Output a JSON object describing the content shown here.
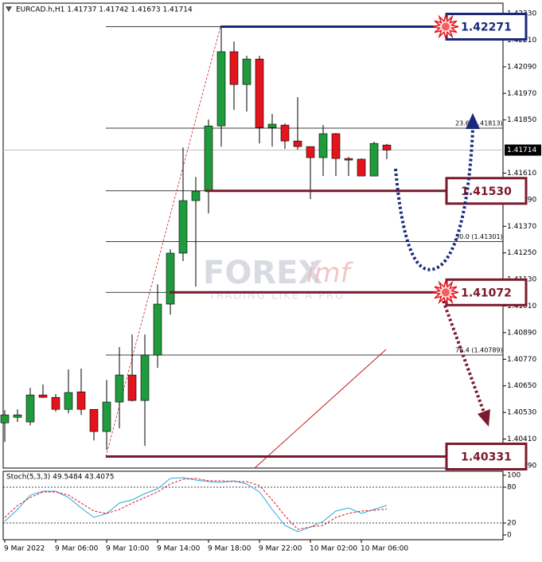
{
  "chart_data": {
    "type": "candlestick",
    "title": "EURCAD.h,H1  1.41737 1.41742 1.41673 1.41714",
    "watermark": [
      "FOREX",
      "imf"
    ],
    "watermark_tagline": "TRADING LIKE A PRO",
    "categories": [
      "9 Mar 2022",
      null,
      null,
      null,
      "9 Mar 06:00",
      null,
      null,
      null,
      "9 Mar 10:00",
      null,
      null,
      null,
      "9 Mar 14:00",
      null,
      null,
      null,
      "9 Mar 18:00",
      null,
      null,
      null,
      "9 Mar 22:00",
      null,
      null,
      null,
      "10 Mar 02:00",
      null,
      null,
      null,
      "10 Mar 06:00",
      null,
      null
    ],
    "open": [
      1.40483,
      1.40508,
      1.40487,
      1.40609,
      1.40598,
      1.40544,
      1.40623,
      1.40544,
      1.40444,
      1.40577,
      1.40699,
      1.40584,
      1.40789,
      1.41019,
      1.41249,
      1.41486,
      1.41529,
      1.41823,
      1.42158,
      1.4201,
      1.42125,
      1.41816,
      1.41827,
      1.41755,
      1.4173,
      1.4168,
      1.41788,
      1.41676,
      1.41673,
      1.41597,
      1.41737
    ],
    "high": [
      1.40541,
      1.40544,
      1.40641,
      1.40656,
      1.40613,
      1.40724,
      1.40728,
      1.40544,
      1.40677,
      1.40825,
      1.40882,
      1.40882,
      1.41108,
      1.41267,
      1.41726,
      1.41593,
      1.41852,
      1.42271,
      1.42204,
      1.4214,
      1.4214,
      1.41877,
      1.41834,
      1.41953,
      1.4173,
      1.41827,
      1.41791,
      1.41683,
      1.41676,
      1.41752,
      1.41742
    ],
    "low": [
      1.40397,
      1.40487,
      1.40472,
      1.40595,
      1.40534,
      1.40526,
      1.40519,
      1.40404,
      1.40361,
      1.40458,
      1.4058,
      1.40379,
      1.40731,
      1.40972,
      1.41213,
      1.41098,
      1.41428,
      1.4173,
      1.41895,
      1.41888,
      1.41744,
      1.4173,
      1.41719,
      1.41716,
      1.41493,
      1.41597,
      1.41597,
      1.41597,
      1.41597,
      1.41597,
      1.41673
    ],
    "close": [
      1.40519,
      1.40519,
      1.40609,
      1.40598,
      1.40544,
      1.4062,
      1.40544,
      1.40444,
      1.40577,
      1.40699,
      1.40584,
      1.40789,
      1.41019,
      1.41249,
      1.41486,
      1.41529,
      1.41823,
      1.42158,
      1.4201,
      1.42125,
      1.41816,
      1.41831,
      1.41755,
      1.4173,
      1.4168,
      1.41788,
      1.41676,
      1.41669,
      1.41597,
      1.41744,
      1.41714
    ],
    "up_color": "#1f9a3c",
    "down_color": "#e3141c",
    "ylim": [
      1.40279,
      1.42377
    ],
    "yticks": [
      {
        "value": 1.4233,
        "label": "1.42330"
      },
      {
        "value": 1.4221,
        "label": "1.42210"
      },
      {
        "value": 1.4209,
        "label": "1.42090"
      },
      {
        "value": 1.4197,
        "label": "1.41970"
      },
      {
        "value": 1.4185,
        "label": "1.41850"
      },
      {
        "value": 1.4161,
        "label": "1.41610"
      },
      {
        "value": 1.4149,
        "label": "1.41490"
      },
      {
        "value": 1.4137,
        "label": "1.41370"
      },
      {
        "value": 1.4125,
        "label": "1.41250"
      },
      {
        "value": 1.4113,
        "label": "1.41130"
      },
      {
        "value": 1.4101,
        "label": "1.41010"
      },
      {
        "value": 1.4089,
        "label": "1.40890"
      },
      {
        "value": 1.4077,
        "label": "1.40770"
      },
      {
        "value": 1.4065,
        "label": "1.40650"
      },
      {
        "value": 1.4053,
        "label": "1.40530"
      },
      {
        "value": 1.4041,
        "label": "1.40410"
      },
      {
        "value": 1.4029,
        "label": "1.40290"
      }
    ],
    "current_price": 1.41714,
    "key_levels": [
      {
        "value": 1.42271,
        "label": "1.42271",
        "color": "#1a2a7a"
      },
      {
        "value": 1.4153,
        "label": "1.41530",
        "color": "#7a1a2e"
      },
      {
        "value": 1.41072,
        "label": "1.41072",
        "color": "#7a1a2e"
      },
      {
        "value": 1.40331,
        "label": "1.40331",
        "color": "#7a1a2e"
      }
    ],
    "fib_levels": [
      {
        "value": 1.41813,
        "label": "23.6 (1.41813)"
      },
      {
        "value": 1.41301,
        "label": "50.0 (1.41301)"
      },
      {
        "value": 1.40789,
        "label": "76.4 (1.40789)"
      }
    ],
    "indicator": {
      "title": "Stoch(5,3,3) 49.5484 43.4075",
      "ylim": [
        -8,
        106.7
      ],
      "yticks": [
        100,
        80,
        20,
        0
      ],
      "levels": [
        80,
        20
      ],
      "series": [
        {
          "color": "#2aa8e0",
          "values": [
            22.7,
            42.7,
            66.7,
            73.3,
            73.3,
            62.7,
            45.3,
            29.3,
            36,
            53.3,
            58.7,
            69.3,
            77.3,
            94.7,
            96,
            92,
            89.3,
            88,
            90.7,
            85.3,
            72,
            42.7,
            16,
            5.3,
            13.3,
            22.7,
            40,
            45.3,
            36,
            42.7,
            49.5484
          ]
        },
        {
          "color": "#e3141c",
          "values": [
            29.3,
            49.3,
            62.7,
            72,
            72,
            66.7,
            53.3,
            40,
            36,
            42.7,
            53.3,
            62.7,
            72,
            85.3,
            93.3,
            94.7,
            90.7,
            90.7,
            89.3,
            89.3,
            82.7,
            58.7,
            32,
            9.3,
            13.3,
            16,
            29.3,
            36,
            40,
            41.3,
            43.4075
          ]
        }
      ]
    }
  }
}
